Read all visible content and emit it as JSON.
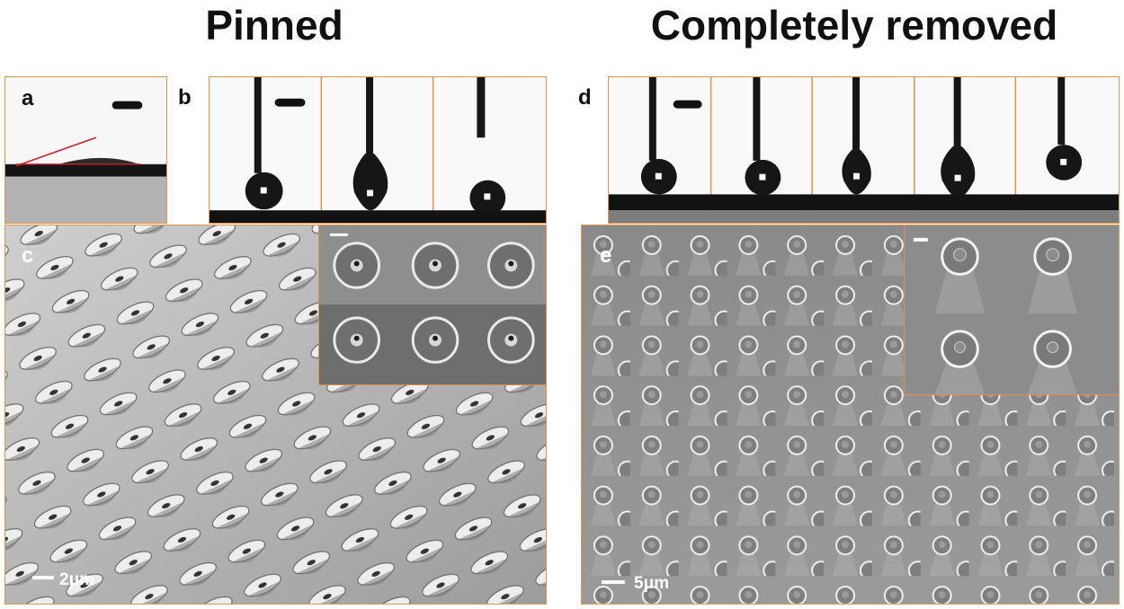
{
  "headings": {
    "left": "Pinned",
    "right": "Completely removed"
  },
  "panels": {
    "a": {
      "letter": "a"
    },
    "b": {
      "letter": "b"
    },
    "c": {
      "letter": "c",
      "scale_label": "2μm"
    },
    "d": {
      "letter": "d"
    },
    "e": {
      "letter": "e",
      "scale_label": "5μm"
    }
  },
  "colors": {
    "frame": "#e0924a",
    "contact_angle_line": "#d0202a",
    "droplet": "#161616",
    "substrate": "#121212"
  }
}
